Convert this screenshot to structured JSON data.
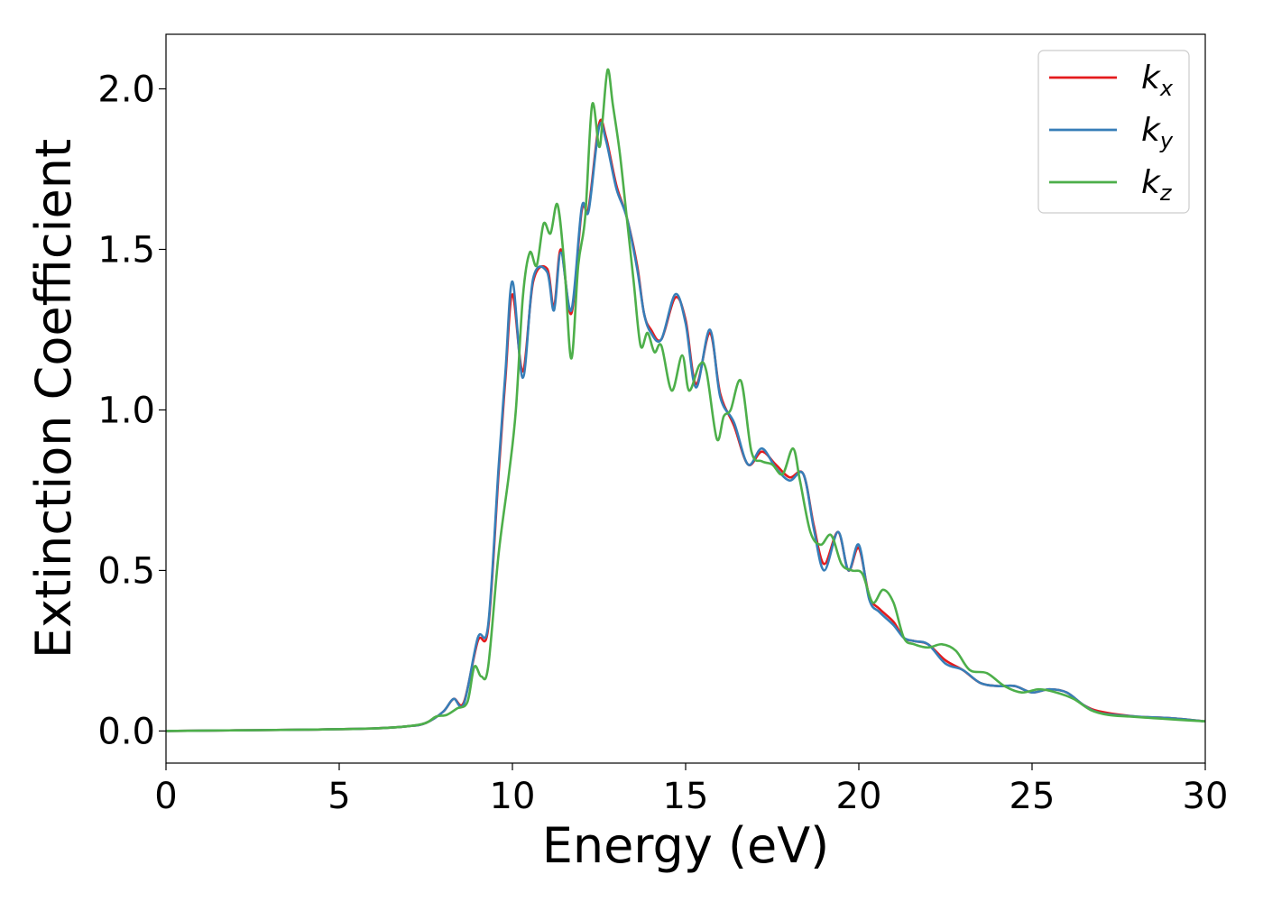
{
  "chart_data": {
    "type": "line",
    "xlabel": "Energy (eV)",
    "ylabel": "Extinction Coefficient",
    "xlim": [
      0,
      30
    ],
    "ylim": [
      -0.1,
      2.17
    ],
    "xticks": [
      0,
      5,
      10,
      15,
      20,
      25,
      30
    ],
    "xtick_labels": [
      "0",
      "5",
      "10",
      "15",
      "20",
      "25",
      "30"
    ],
    "yticks": [
      0.0,
      0.5,
      1.0,
      1.5,
      2.0
    ],
    "ytick_labels": [
      "0.0",
      "0.5",
      "1.0",
      "1.5",
      "2.0"
    ],
    "grid": false,
    "legend_position": "top-right",
    "series": [
      {
        "name": "k_x",
        "label_main": "k",
        "label_sub": "x",
        "color": "#e41a1c",
        "x": [
          0,
          2,
          4,
          6,
          7,
          7.5,
          8,
          8.3,
          8.6,
          9,
          9.3,
          9.6,
          9.8,
          10,
          10.3,
          10.6,
          11,
          11.2,
          11.4,
          11.7,
          12,
          12.2,
          12.5,
          12.7,
          13,
          13.3,
          13.6,
          13.8,
          14,
          14.3,
          14.7,
          15,
          15.3,
          15.7,
          16,
          16.4,
          16.8,
          17.2,
          17.6,
          18,
          18.4,
          18.7,
          19,
          19.4,
          19.7,
          20,
          20.3,
          20.6,
          21,
          21.3,
          21.6,
          22,
          22.5,
          23,
          23.5,
          24,
          24.5,
          25,
          25.5,
          26,
          26.5,
          27,
          28,
          29,
          30
        ],
        "values": [
          0.0,
          0.002,
          0.004,
          0.008,
          0.015,
          0.025,
          0.06,
          0.1,
          0.09,
          0.28,
          0.32,
          0.8,
          1.1,
          1.36,
          1.12,
          1.4,
          1.44,
          1.32,
          1.5,
          1.3,
          1.62,
          1.63,
          1.89,
          1.85,
          1.7,
          1.6,
          1.45,
          1.3,
          1.25,
          1.22,
          1.35,
          1.28,
          1.08,
          1.24,
          1.05,
          0.95,
          0.83,
          0.87,
          0.83,
          0.79,
          0.8,
          0.64,
          0.52,
          0.62,
          0.5,
          0.57,
          0.42,
          0.38,
          0.34,
          0.29,
          0.28,
          0.27,
          0.22,
          0.19,
          0.15,
          0.14,
          0.14,
          0.12,
          0.13,
          0.12,
          0.08,
          0.06,
          0.045,
          0.04,
          0.03
        ]
      },
      {
        "name": "k_y",
        "label_main": "k",
        "label_sub": "y",
        "color": "#377eb8",
        "x": [
          0,
          2,
          4,
          6,
          7,
          7.5,
          8,
          8.3,
          8.6,
          9,
          9.3,
          9.6,
          9.8,
          10,
          10.3,
          10.6,
          11,
          11.2,
          11.4,
          11.7,
          12,
          12.2,
          12.5,
          12.7,
          13,
          13.3,
          13.6,
          13.8,
          14,
          14.3,
          14.7,
          15,
          15.3,
          15.7,
          16,
          16.4,
          16.8,
          17.2,
          17.6,
          18,
          18.4,
          18.7,
          19,
          19.4,
          19.7,
          20,
          20.3,
          20.6,
          21,
          21.3,
          21.6,
          22,
          22.5,
          23,
          23.5,
          24,
          24.5,
          25,
          25.5,
          26,
          26.5,
          27,
          28,
          29,
          30
        ],
        "values": [
          0.0,
          0.002,
          0.004,
          0.008,
          0.015,
          0.025,
          0.06,
          0.1,
          0.085,
          0.29,
          0.33,
          0.82,
          1.12,
          1.4,
          1.1,
          1.41,
          1.43,
          1.31,
          1.49,
          1.31,
          1.63,
          1.62,
          1.88,
          1.84,
          1.69,
          1.6,
          1.44,
          1.3,
          1.24,
          1.22,
          1.36,
          1.27,
          1.07,
          1.25,
          1.04,
          0.96,
          0.83,
          0.88,
          0.82,
          0.78,
          0.8,
          0.63,
          0.5,
          0.62,
          0.5,
          0.58,
          0.41,
          0.37,
          0.33,
          0.29,
          0.28,
          0.27,
          0.21,
          0.19,
          0.15,
          0.14,
          0.14,
          0.12,
          0.13,
          0.12,
          0.08,
          0.055,
          0.045,
          0.04,
          0.03
        ]
      },
      {
        "name": "k_z",
        "label_main": "k",
        "label_sub": "z",
        "color": "#4daf4a",
        "x": [
          0,
          2,
          4,
          6,
          7,
          7.5,
          7.8,
          8.1,
          8.4,
          8.7,
          8.9,
          9.1,
          9.3,
          9.6,
          9.9,
          10.1,
          10.3,
          10.5,
          10.7,
          10.9,
          11.1,
          11.3,
          11.5,
          11.7,
          11.9,
          12.1,
          12.3,
          12.5,
          12.6,
          12.75,
          12.9,
          13.1,
          13.3,
          13.5,
          13.7,
          13.9,
          14.1,
          14.3,
          14.6,
          14.9,
          15.1,
          15.4,
          15.6,
          15.9,
          16.1,
          16.3,
          16.6,
          16.9,
          17.2,
          17.5,
          17.8,
          18.1,
          18.3,
          18.6,
          18.9,
          19.2,
          19.5,
          19.8,
          20.1,
          20.4,
          20.7,
          21,
          21.3,
          21.6,
          22,
          22.4,
          22.8,
          23.2,
          23.7,
          24.2,
          24.7,
          25.2,
          25.7,
          26.2,
          26.7,
          27.2,
          27.8,
          28.5,
          29.2,
          30
        ],
        "values": [
          0.0,
          0.002,
          0.004,
          0.008,
          0.015,
          0.025,
          0.045,
          0.05,
          0.07,
          0.09,
          0.2,
          0.17,
          0.2,
          0.55,
          0.8,
          1.0,
          1.35,
          1.49,
          1.45,
          1.58,
          1.55,
          1.64,
          1.45,
          1.16,
          1.45,
          1.6,
          1.95,
          1.82,
          1.9,
          2.06,
          1.95,
          1.8,
          1.6,
          1.4,
          1.2,
          1.24,
          1.18,
          1.2,
          1.06,
          1.17,
          1.06,
          1.14,
          1.12,
          0.91,
          0.98,
          1.0,
          1.09,
          0.87,
          0.84,
          0.83,
          0.8,
          0.88,
          0.78,
          0.62,
          0.58,
          0.61,
          0.52,
          0.5,
          0.49,
          0.4,
          0.44,
          0.4,
          0.29,
          0.27,
          0.26,
          0.27,
          0.25,
          0.19,
          0.18,
          0.14,
          0.12,
          0.13,
          0.12,
          0.1,
          0.065,
          0.05,
          0.045,
          0.04,
          0.035,
          0.03
        ]
      }
    ]
  }
}
